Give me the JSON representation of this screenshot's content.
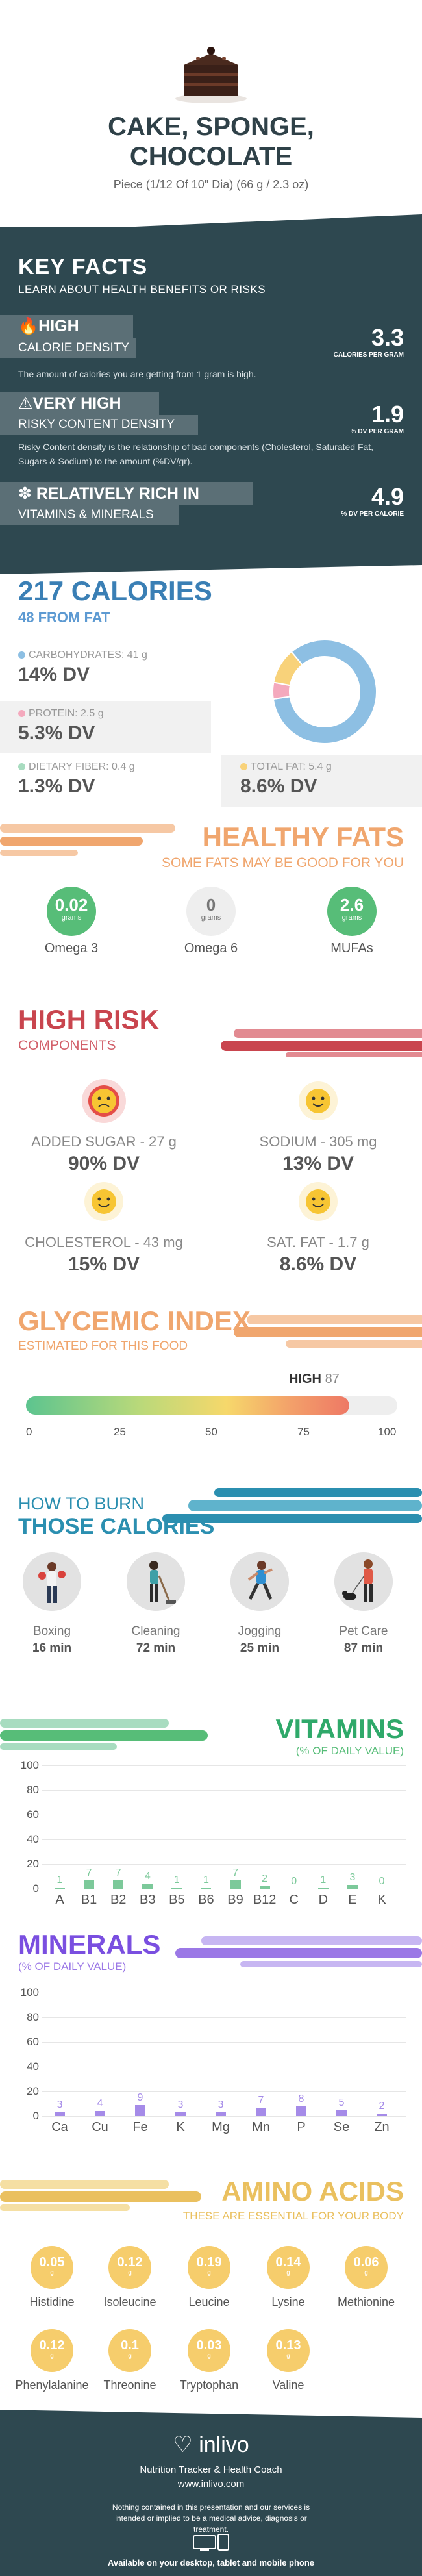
{
  "hero": {
    "title_line1": "CAKE, SPONGE,",
    "title_line2": "CHOCOLATE",
    "serving": "Piece (1/12 Of 10\" Dia) (66 g / 2.3 oz)"
  },
  "key_facts": {
    "title": "KEY FACTS",
    "subtitle": "LEARN ABOUT HEALTH BENEFITS OR RISKS",
    "items": [
      {
        "icon": "flame-icon",
        "level": "HIGH",
        "label": "CALORIE DENSITY",
        "description": "The amount of calories you are getting from 1 gram is high.",
        "value": "3.3",
        "unit": "CALORIES PER GRAM"
      },
      {
        "icon": "warning-icon",
        "level": "VERY HIGH",
        "label": "RISKY CONTENT DENSITY",
        "description": "Risky Content density is the relationship of bad components (Cholesterol, Saturated Fat, Sugars & Sodium) to the amount (%DV/gr).",
        "value": "1.9",
        "unit": "% DV PER GRAM"
      },
      {
        "icon": "leaf-icon",
        "level": "RELATIVELY RICH IN",
        "label": "VITAMINS & MINERALS",
        "description": "",
        "value": "4.9",
        "unit": "% DV PER CALORIE"
      }
    ]
  },
  "calories": {
    "title": "217 CALORIES",
    "from_fat": "48 FROM FAT",
    "nutrients": [
      {
        "label": "CARBOHYDRATES: 41 g",
        "dv": "14% DV",
        "color": "#8dbfe3"
      },
      {
        "label": "PROTEIN: 2.5 g",
        "dv": "5.3% DV",
        "color": "#f4a9bd"
      },
      {
        "label": "DIETARY FIBER: 0.4 g",
        "dv": "1.3% DV",
        "color": "#a8dcc0"
      },
      {
        "label": "TOTAL FAT: 5.4 g",
        "dv": "8.6% DV",
        "color": "#f8d27a"
      }
    ]
  },
  "healthy_fats": {
    "title": "HEALTHY FATS",
    "subtitle": "SOME FATS MAY BE GOOD FOR YOU",
    "items": [
      {
        "value": "0.02",
        "unit": "grams",
        "name": "Omega 3",
        "color": "#57bd78"
      },
      {
        "value": "0",
        "unit": "grams",
        "name": "Omega 6",
        "color": "#eeeeee"
      },
      {
        "value": "2.6",
        "unit": "grams",
        "name": "MUFAs",
        "color": "#57bd78"
      }
    ]
  },
  "high_risk": {
    "title": "HIGH RISK",
    "subtitle": "COMPONENTS",
    "items": [
      {
        "name": "ADDED SUGAR - 27 g",
        "dv": "90% DV",
        "face": "sad-face-icon"
      },
      {
        "name": "SODIUM - 305 mg",
        "dv": "13% DV",
        "face": "happy-face-icon"
      },
      {
        "name": "CHOLESTEROL - 43 mg",
        "dv": "15% DV",
        "face": "happy-face-icon"
      },
      {
        "name": "SAT. FAT - 1.7 g",
        "dv": "8.6% DV",
        "face": "happy-face-icon"
      }
    ]
  },
  "glycemic": {
    "title": "GLYCEMIC INDEX",
    "subtitle": "ESTIMATED FOR THIS FOOD",
    "level": "HIGH",
    "value": "87",
    "fill": 0.87,
    "ticks": [
      "0",
      "25",
      "50",
      "75",
      "100"
    ]
  },
  "burn": {
    "title1": "HOW TO BURN",
    "title2": "THOSE CALORIES",
    "activities": [
      {
        "name": "Boxing",
        "minutes": "16 min",
        "icon": "boxing-icon"
      },
      {
        "name": "Cleaning",
        "minutes": "72 min",
        "icon": "cleaning-icon"
      },
      {
        "name": "Jogging",
        "minutes": "25 min",
        "icon": "jogging-icon"
      },
      {
        "name": "Pet Care",
        "minutes": "87 min",
        "icon": "pet-care-icon"
      }
    ]
  },
  "chart_data": [
    {
      "type": "bar",
      "title": "VITAMINS",
      "subtitle": "(% OF DAILY VALUE)",
      "categories": [
        "A",
        "B1",
        "B2",
        "B3",
        "B5",
        "B6",
        "B9",
        "B12",
        "C",
        "D",
        "E",
        "K"
      ],
      "values": [
        1,
        7,
        7,
        4,
        1,
        1,
        7,
        2,
        0,
        1,
        3,
        0
      ],
      "ylim": [
        0,
        100
      ],
      "yticks": [
        "0",
        "20",
        "40",
        "60",
        "80",
        "100"
      ],
      "color": "#7cc99a"
    },
    {
      "type": "bar",
      "title": "MINERALS",
      "subtitle": "(% OF DAILY VALUE)",
      "categories": [
        "Ca",
        "Cu",
        "Fe",
        "K",
        "Mg",
        "Mn",
        "P",
        "Se",
        "Zn"
      ],
      "values": [
        3,
        4,
        9,
        3,
        3,
        7,
        8,
        5,
        2
      ],
      "ylim": [
        0,
        100
      ],
      "yticks": [
        "0",
        "20",
        "40",
        "60",
        "80",
        "100"
      ],
      "color": "#a58be8"
    }
  ],
  "amino": {
    "title": "AMINO ACIDS",
    "subtitle": "THESE ARE ESSENTIAL FOR YOUR BODY",
    "items": [
      {
        "value": "0.05",
        "unit": "g",
        "name": "Histidine"
      },
      {
        "value": "0.12",
        "unit": "g",
        "name": "Isoleucine"
      },
      {
        "value": "0.19",
        "unit": "g",
        "name": "Leucine"
      },
      {
        "value": "0.14",
        "unit": "g",
        "name": "Lysine"
      },
      {
        "value": "0.06",
        "unit": "g",
        "name": "Methionine"
      },
      {
        "value": "0.12",
        "unit": "g",
        "name": "Phenylalanine"
      },
      {
        "value": "0.1",
        "unit": "g",
        "name": "Threonine"
      },
      {
        "value": "0.03",
        "unit": "g",
        "name": "Tryptophan"
      },
      {
        "value": "0.13",
        "unit": "g",
        "name": "Valine"
      }
    ]
  },
  "footer": {
    "logo": "inlivo",
    "tagline": "Nutrition Tracker & Health Coach",
    "url": "www.inlivo.com",
    "disclaimer": "Nothing contained in this presentation and our services is intended or implied to be a medical advice, diagnosis or treatment.",
    "available": "Available on your desktop, tablet and mobile phone"
  }
}
